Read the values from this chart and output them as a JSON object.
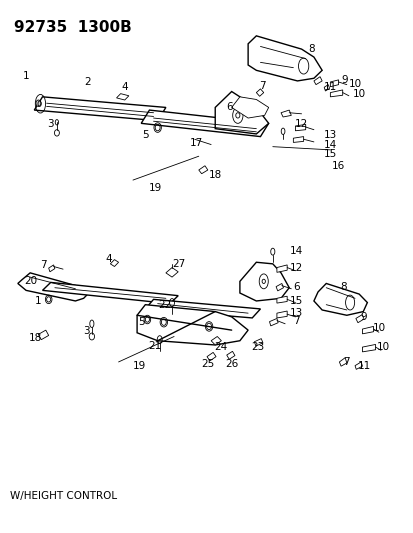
{
  "title": "92735  1300B",
  "subtitle": "W/HEIGHT CONTROL",
  "bg_color": "#ffffff",
  "line_color": "#000000",
  "title_fontsize": 11,
  "label_fontsize": 7.5,
  "fig_width": 4.14,
  "fig_height": 5.33,
  "dpi": 100
}
